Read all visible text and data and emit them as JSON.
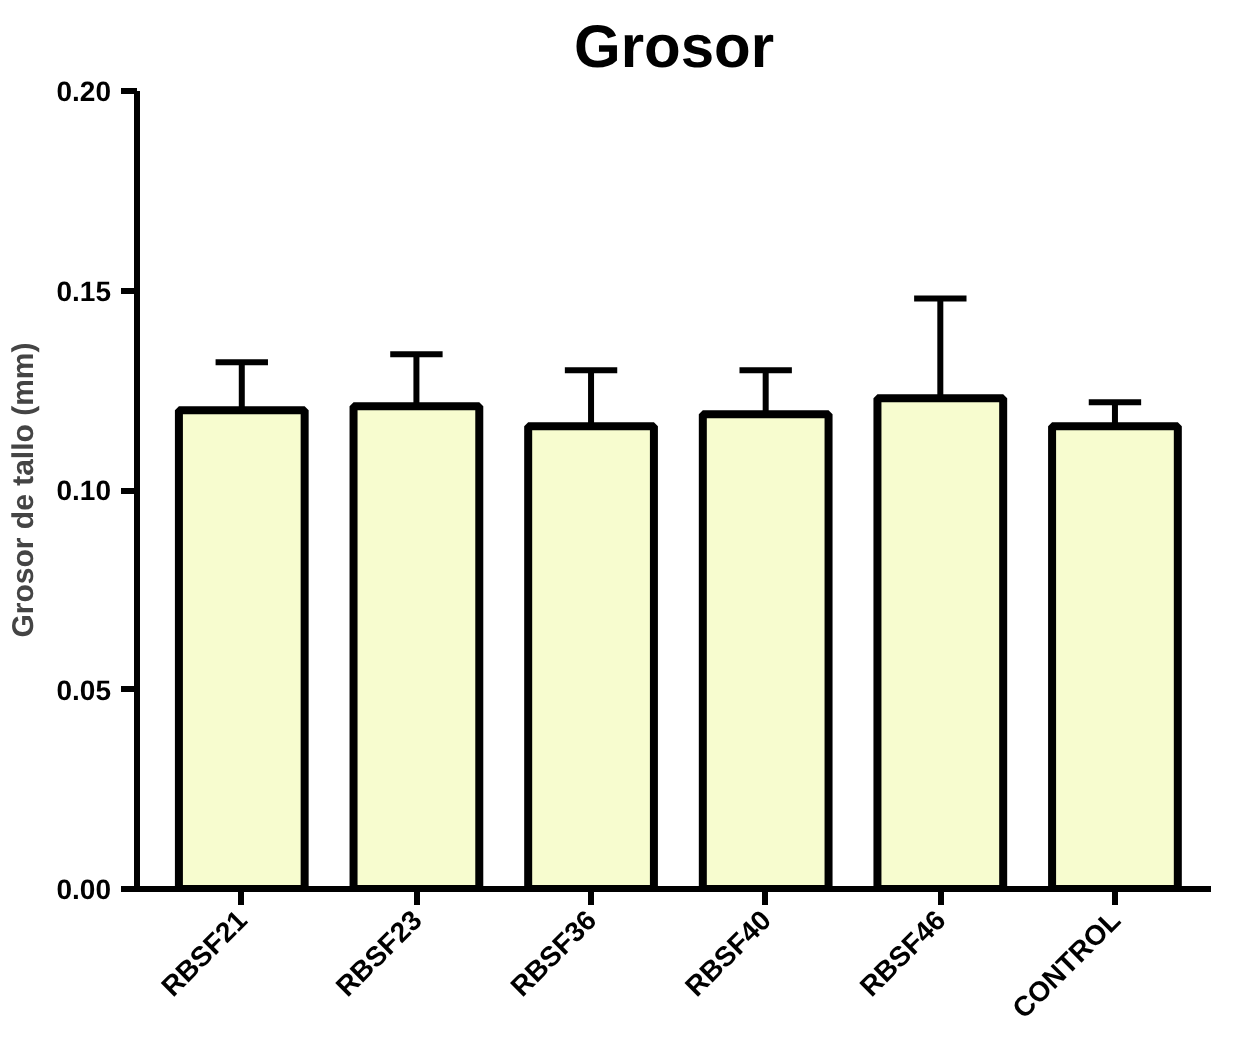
{
  "chart_data": {
    "type": "bar",
    "title": "Grosor",
    "ylabel": "Grosor de tallo (mm)",
    "categories": [
      "RBSF21",
      "RBSF23",
      "RBSF36",
      "RBSF40",
      "RBSF46",
      "CONTROL"
    ],
    "values": [
      0.12,
      0.121,
      0.116,
      0.119,
      0.123,
      0.116
    ],
    "errors": [
      [
        0.12,
        0.132
      ],
      [
        0.121,
        0.134
      ],
      [
        0.116,
        0.13
      ],
      [
        0.119,
        0.13
      ],
      [
        0.123,
        0.148
      ],
      [
        0.116,
        0.122
      ]
    ],
    "color": "#f7fccf",
    "ylim": [
      0,
      0.2
    ],
    "yticks": [
      {
        "value": 0,
        "label": "0.00"
      },
      {
        "value": 0.05,
        "label": "0.05"
      },
      {
        "value": 0.1,
        "label": "0.10"
      },
      {
        "value": 0.15,
        "label": "0.15"
      },
      {
        "value": 0.2,
        "label": "0.20"
      }
    ],
    "grid": false
  }
}
